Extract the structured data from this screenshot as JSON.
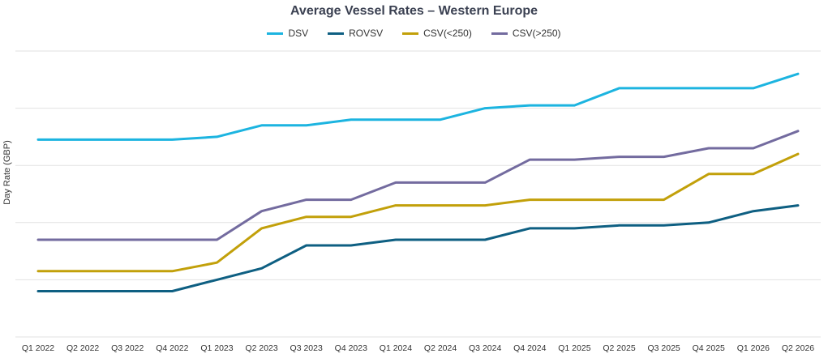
{
  "chart_data": {
    "type": "line",
    "title": "Average Vessel Rates – Western Europe",
    "xlabel": "",
    "ylabel": "Day Rate (GBP)",
    "legend_position": "top-center",
    "grid": "horizontal",
    "y_tick_labels_shown": false,
    "ylim": [
      0,
      100
    ],
    "categories": [
      "Q1 2022",
      "Q2 2022",
      "Q3 2022",
      "Q4 2022",
      "Q1 2023",
      "Q2 2023",
      "Q3 2023",
      "Q4 2023",
      "Q1 2024",
      "Q2 2024",
      "Q3 2024",
      "Q4 2024",
      "Q1 2025",
      "Q2 2025",
      "Q3 2025",
      "Q4 2025",
      "Q1 2026",
      "Q2 2026"
    ],
    "series": [
      {
        "name": "DSV",
        "color": "#1cb4e0",
        "values": [
          69,
          69,
          69,
          69,
          70,
          74,
          74,
          76,
          76,
          76,
          80,
          81,
          81,
          87,
          87,
          87,
          87,
          92
        ]
      },
      {
        "name": "ROVSV",
        "color": "#0e5f82",
        "values": [
          16,
          16,
          16,
          16,
          20,
          24,
          32,
          32,
          34,
          34,
          34,
          38,
          38,
          39,
          39,
          40,
          44,
          46
        ]
      },
      {
        "name": "CSV(<250)",
        "color": "#c2a00a",
        "values": [
          23,
          23,
          23,
          23,
          26,
          38,
          42,
          42,
          46,
          46,
          46,
          48,
          48,
          48,
          48,
          57,
          57,
          64
        ]
      },
      {
        "name": "CSV(>250)",
        "color": "#736b9f",
        "values": [
          34,
          34,
          34,
          34,
          34,
          44,
          48,
          48,
          54,
          54,
          54,
          62,
          62,
          63,
          63,
          66,
          66,
          72
        ]
      }
    ]
  }
}
